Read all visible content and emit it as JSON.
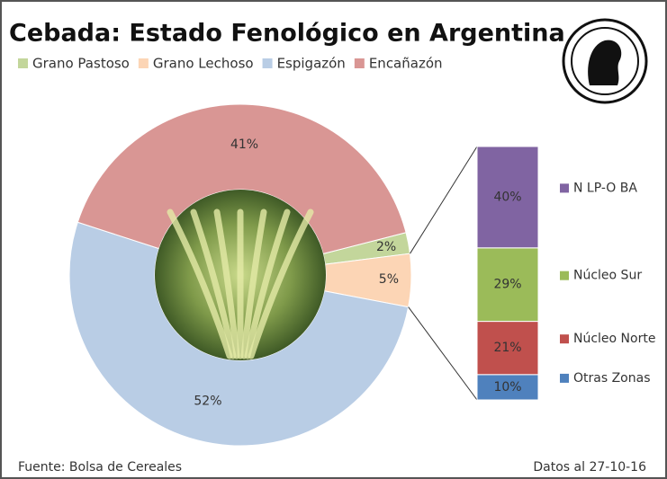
{
  "chart_data": [
    {
      "type": "donut",
      "title": "Cebada: Estado Fenológico en Argentina",
      "categories": [
        "Grano Pastoso",
        "Grano Lechoso",
        "Espigazón",
        "Encañazón"
      ],
      "values": [
        2,
        5,
        52,
        41
      ],
      "value_labels": [
        "2%",
        "5%",
        "52%",
        "41%"
      ],
      "colors": [
        "#c3d69b",
        "#fcd5b5",
        "#b9cde5",
        "#d99694"
      ],
      "legend": "top"
    },
    {
      "type": "stacked-bar",
      "series": [
        {
          "name": "Otras Zonas",
          "color": "#4f81bd",
          "values": [
            10
          ],
          "value_labels": [
            "10%"
          ]
        },
        {
          "name": "Núcleo Norte",
          "color": "#c0504d",
          "values": [
            21
          ],
          "value_labels": [
            "21%"
          ]
        },
        {
          "name": "Núcleo Sur",
          "color": "#9bbb59",
          "values": [
            29
          ],
          "value_labels": [
            "29%"
          ]
        },
        {
          "name": "N LP-O BA",
          "color": "#8064a2",
          "values": [
            40
          ],
          "value_labels": [
            "40%"
          ]
        }
      ],
      "ylim": [
        0,
        100
      ],
      "legend": "right"
    }
  ],
  "footer": {
    "source": "Fuente:  Bolsa de Cereales",
    "date": "Datos al 27-10-16"
  }
}
